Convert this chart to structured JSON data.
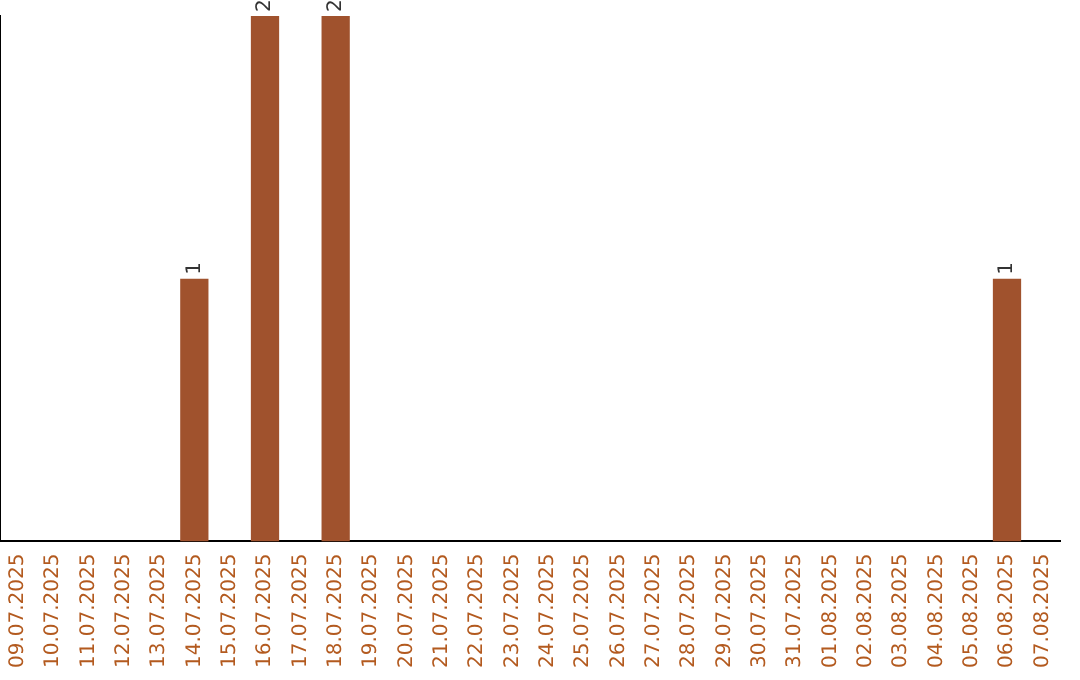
{
  "chart_data": {
    "type": "bar",
    "categories": [
      "09.07.2025",
      "10.07.2025",
      "11.07.2025",
      "12.07.2025",
      "13.07.2025",
      "14.07.2025",
      "15.07.2025",
      "16.07.2025",
      "17.07.2025",
      "18.07.2025",
      "19.07.2025",
      "20.07.2025",
      "21.07.2025",
      "22.07.2025",
      "23.07.2025",
      "24.07.2025",
      "25.07.2025",
      "26.07.2025",
      "27.07.2025",
      "28.07.2025",
      "29.07.2025",
      "30.07.2025",
      "31.07.2025",
      "01.08.2025",
      "02.08.2025",
      "03.08.2025",
      "04.08.2025",
      "05.08.2025",
      "06.08.2025",
      "07.08.2025"
    ],
    "values": [
      0,
      0,
      0,
      0,
      0,
      1,
      0,
      2,
      0,
      2,
      0,
      0,
      0,
      0,
      0,
      0,
      0,
      0,
      0,
      0,
      0,
      0,
      0,
      0,
      0,
      0,
      0,
      0,
      1,
      0
    ],
    "value_labels": [
      null,
      null,
      null,
      null,
      null,
      "1",
      null,
      "2",
      null,
      "2",
      null,
      null,
      null,
      null,
      null,
      null,
      null,
      null,
      null,
      null,
      null,
      null,
      null,
      null,
      null,
      null,
      null,
      null,
      "1",
      null
    ],
    "color": "#a0522d",
    "ylim": [
      0,
      2
    ],
    "grid": false,
    "legend": false,
    "tick_labels": "x"
  }
}
